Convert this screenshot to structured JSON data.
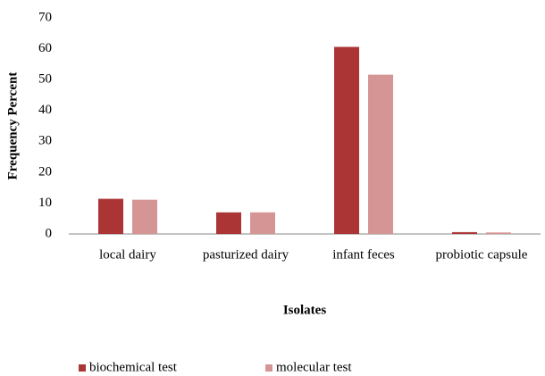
{
  "chart_data": {
    "type": "bar",
    "x_label": "Isolates",
    "y_label": "Frequency Percent",
    "categories": [
      "local dairy",
      "pasturized dairy",
      "infant feces",
      "probiotic capsule"
    ],
    "series": [
      {
        "name": "biochemical test",
        "color": "#ab3535",
        "values": [
          11.4,
          7,
          60.6,
          0.6
        ]
      },
      {
        "name": "molecular test",
        "color": "#d69595",
        "values": [
          11.1,
          7,
          51.6,
          0.5
        ]
      }
    ],
    "ylim": [
      0,
      70
    ],
    "yticks": [
      0,
      10,
      20,
      30,
      40,
      50,
      60,
      70
    ],
    "grid": false,
    "legend": "bottom"
  }
}
